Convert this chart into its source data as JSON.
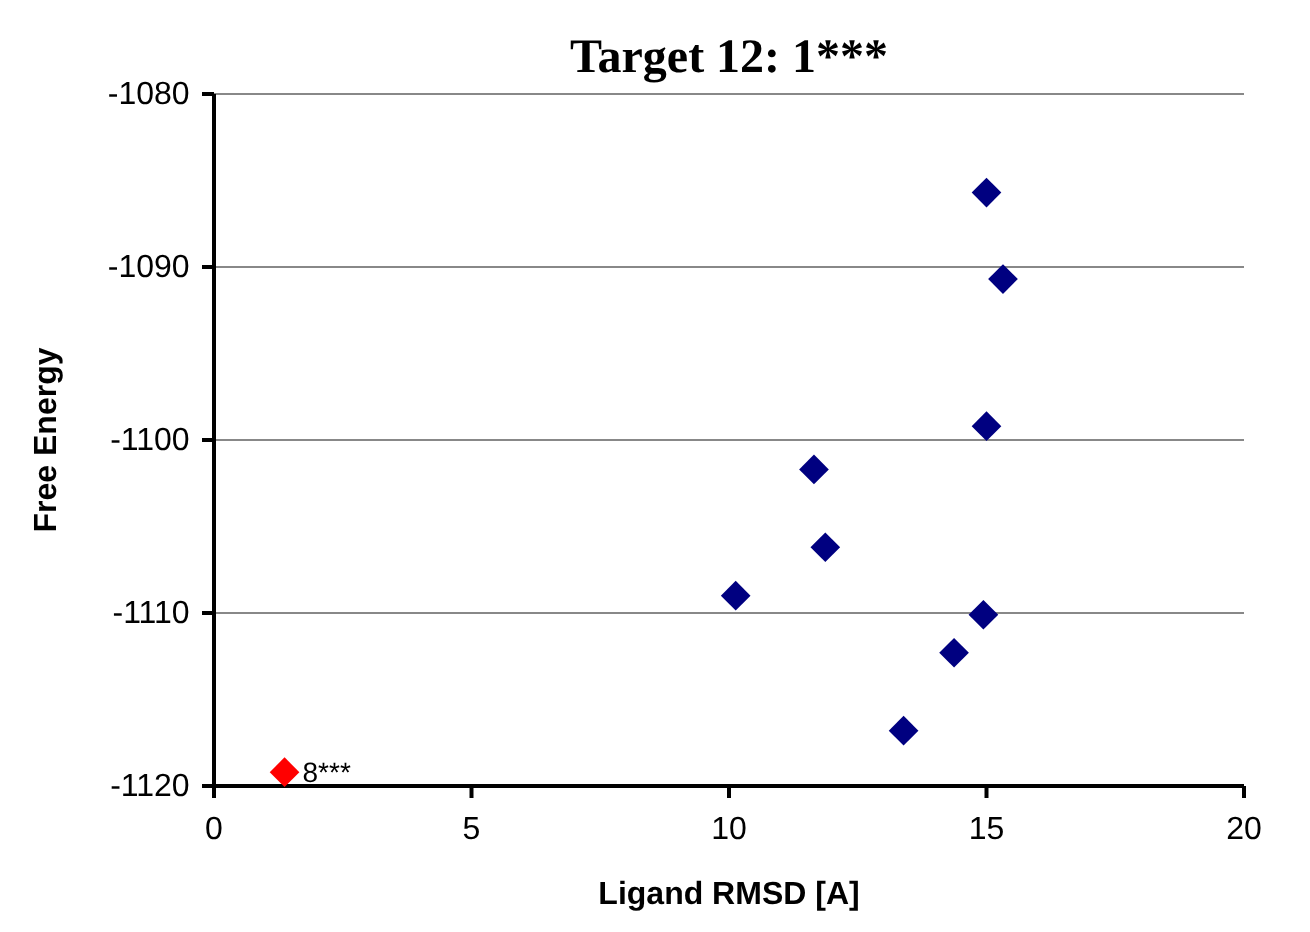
{
  "chart_data": {
    "type": "scatter",
    "title": "Target 12: 1***",
    "xlabel": "Ligand RMSD [A]",
    "ylabel": "Free Energy",
    "xlim": [
      0,
      20
    ],
    "xticks": [
      0,
      5,
      10,
      15,
      20
    ],
    "ylim": [
      -1120,
      -1080
    ],
    "yticks": [
      -1120,
      -1110,
      -1100,
      -1090,
      -1080
    ],
    "grid": "y",
    "marker": "diamond",
    "series": [
      {
        "color": "#000080",
        "x": [
          15.0,
          15.32,
          15.0,
          11.65,
          11.87,
          10.13,
          14.94,
          14.37,
          13.39
        ],
        "values": [
          -1085.7,
          -1090.7,
          -1099.2,
          -1101.7,
          -1106.2,
          -1109.0,
          -1110.1,
          -1112.3,
          -1116.8
        ]
      },
      {
        "color": "#ff0000",
        "x": [
          1.37
        ],
        "values": [
          -1119.2
        ]
      }
    ],
    "annotations": [
      {
        "text": "8***",
        "x": 1.37,
        "y": -1119.2
      }
    ]
  }
}
